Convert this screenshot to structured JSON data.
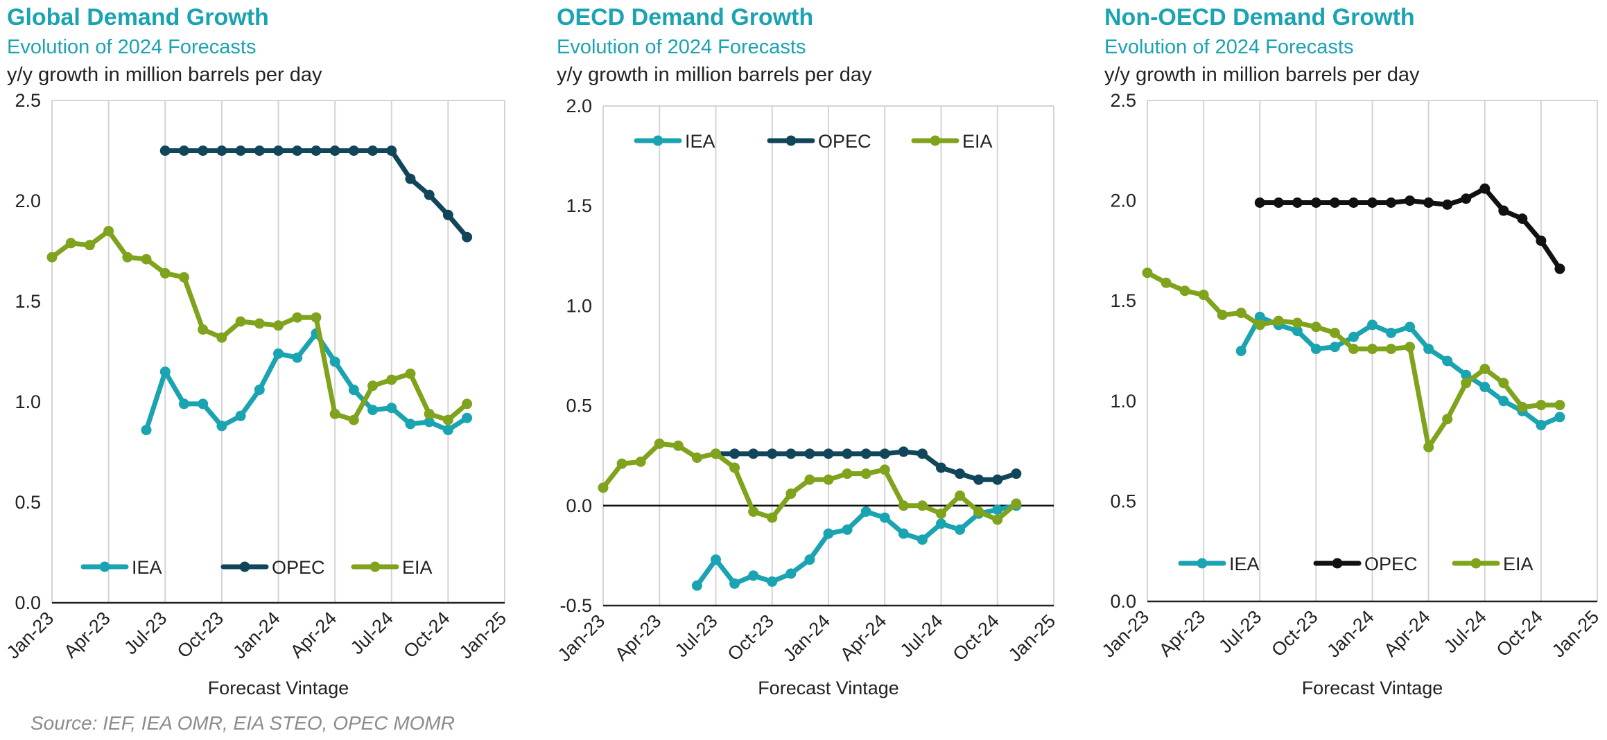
{
  "source": "Source: IEF, IEA OMR, EIA STEO, OPEC MOMR",
  "colors": {
    "IEA": "#1aa3b0",
    "OPEC": "#11455a",
    "EIA": "#7fa31c",
    "OPEC_nonoecd": "#111111"
  },
  "chart_data": [
    {
      "type": "line",
      "title": "Global Demand Growth",
      "subtitle": "Evolution of 2024 Forecasts",
      "ylabel": "y/y growth in million barrels per day",
      "xlabel": "Forecast Vintage",
      "ylim": [
        0,
        2.5
      ],
      "yticks": [
        "0.0",
        "0.5",
        "1.0",
        "1.5",
        "2.0",
        "2.5"
      ],
      "xtick_labels": [
        "Jan-23",
        "Apr-23",
        "Jul-23",
        "Oct-23",
        "Jan-24",
        "Apr-24",
        "Jul-24",
        "Oct-24",
        "Jan-25"
      ],
      "xtick_months": [
        0,
        3,
        6,
        9,
        12,
        15,
        18,
        21,
        24
      ],
      "legend": [
        "IEA",
        "OPEC",
        "EIA"
      ],
      "zero_line": false,
      "series": [
        {
          "name": "IEA",
          "color_key": "IEA",
          "start_month": 5,
          "values": [
            0.86,
            1.15,
            0.99,
            0.99,
            0.88,
            0.93,
            1.06,
            1.24,
            1.22,
            1.34,
            1.2,
            1.06,
            0.96,
            0.97,
            0.89,
            0.9,
            0.86,
            0.92
          ]
        },
        {
          "name": "OPEC",
          "color_key": "OPEC",
          "start_month": 6,
          "values": [
            2.25,
            2.25,
            2.25,
            2.25,
            2.25,
            2.25,
            2.25,
            2.25,
            2.25,
            2.25,
            2.25,
            2.25,
            2.25,
            2.11,
            2.03,
            1.93,
            1.82
          ]
        },
        {
          "name": "EIA",
          "color_key": "EIA",
          "start_month": 0,
          "values": [
            1.72,
            1.79,
            1.78,
            1.85,
            1.72,
            1.71,
            1.64,
            1.62,
            1.36,
            1.32,
            1.4,
            1.39,
            1.38,
            1.42,
            1.42,
            0.94,
            0.91,
            1.08,
            1.11,
            1.14,
            0.94,
            0.91,
            0.99
          ]
        }
      ]
    },
    {
      "type": "line",
      "title": "OECD Demand Growth",
      "subtitle": "Evolution of 2024 Forecasts",
      "ylabel": "y/y growth in million barrels per day",
      "xlabel": "Forecast Vintage",
      "ylim": [
        -0.5,
        2.0
      ],
      "yticks": [
        "-0.5",
        "0.0",
        "0.5",
        "1.0",
        "1.5",
        "2.0"
      ],
      "xtick_labels": [
        "Jan-23",
        "Apr-23",
        "Jul-23",
        "Oct-23",
        "Jan-24",
        "Apr-24",
        "Jul-24",
        "Oct-24",
        "Jan-25"
      ],
      "xtick_months": [
        0,
        3,
        6,
        9,
        12,
        15,
        18,
        21,
        24
      ],
      "legend": [
        "IEA",
        "OPEC",
        "EIA"
      ],
      "zero_line": true,
      "series": [
        {
          "name": "IEA",
          "color_key": "IEA",
          "start_month": 5,
          "values": [
            -0.4,
            -0.27,
            -0.39,
            -0.35,
            -0.38,
            -0.34,
            -0.27,
            -0.14,
            -0.12,
            -0.03,
            -0.06,
            -0.14,
            -0.17,
            -0.09,
            -0.12,
            -0.04,
            -0.02,
            0.0
          ]
        },
        {
          "name": "OPEC",
          "color_key": "OPEC",
          "start_month": 6,
          "values": [
            0.26,
            0.26,
            0.26,
            0.26,
            0.26,
            0.26,
            0.26,
            0.26,
            0.26,
            0.26,
            0.27,
            0.26,
            0.19,
            0.16,
            0.13,
            0.13,
            0.16
          ]
        },
        {
          "name": "EIA",
          "color_key": "EIA",
          "start_month": 0,
          "values": [
            0.09,
            0.21,
            0.22,
            0.31,
            0.3,
            0.24,
            0.26,
            0.19,
            -0.03,
            -0.06,
            0.06,
            0.13,
            0.13,
            0.16,
            0.16,
            0.18,
            0.0,
            0.0,
            -0.04,
            0.05,
            -0.03,
            -0.07,
            0.01
          ]
        }
      ]
    },
    {
      "type": "line",
      "title": "Non-OECD Demand Growth",
      "subtitle": "Evolution of 2024 Forecasts",
      "ylabel": "y/y growth in million barrels per day",
      "xlabel": "Forecast Vintage",
      "ylim": [
        0,
        2.5
      ],
      "yticks": [
        "0.0",
        "0.5",
        "1.0",
        "1.5",
        "2.0",
        "2.5"
      ],
      "xtick_labels": [
        "Jan-23",
        "Apr-23",
        "Jul-23",
        "Oct-23",
        "Jan-24",
        "Apr-24",
        "Jul-24",
        "Oct-24",
        "Jan-25"
      ],
      "xtick_months": [
        0,
        3,
        6,
        9,
        12,
        15,
        18,
        21,
        24
      ],
      "legend": [
        "IEA",
        "OPEC",
        "EIA"
      ],
      "zero_line": false,
      "series": [
        {
          "name": "IEA",
          "color_key": "IEA",
          "start_month": 5,
          "values": [
            1.25,
            1.42,
            1.38,
            1.35,
            1.26,
            1.27,
            1.32,
            1.38,
            1.34,
            1.37,
            1.26,
            1.2,
            1.13,
            1.07,
            1.0,
            0.95,
            0.88,
            0.92
          ]
        },
        {
          "name": "OPEC",
          "color_key": "OPEC_nonoecd",
          "start_month": 6,
          "values": [
            1.99,
            1.99,
            1.99,
            1.99,
            1.99,
            1.99,
            1.99,
            1.99,
            2.0,
            1.99,
            1.98,
            2.01,
            2.06,
            1.95,
            1.91,
            1.8,
            1.66
          ]
        },
        {
          "name": "EIA",
          "color_key": "EIA",
          "start_month": 0,
          "values": [
            1.64,
            1.59,
            1.55,
            1.53,
            1.43,
            1.44,
            1.38,
            1.4,
            1.39,
            1.37,
            1.34,
            1.26,
            1.26,
            1.26,
            1.27,
            0.77,
            0.91,
            1.09,
            1.16,
            1.09,
            0.97,
            0.98,
            0.98
          ]
        }
      ]
    }
  ]
}
